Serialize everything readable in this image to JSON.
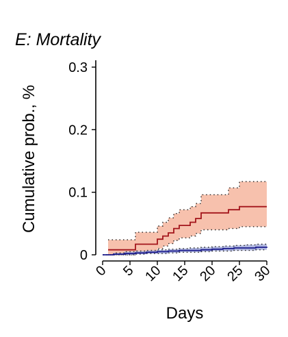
{
  "chart_data": {
    "type": "line",
    "title": "E: Mortality",
    "xlabel": "Days",
    "ylabel": "Cumulative prob., %",
    "xlim": [
      0,
      30
    ],
    "ylim": [
      0,
      0.3
    ],
    "x_ticks": [
      "0",
      "5",
      "10",
      "15",
      "20",
      "25",
      "30"
    ],
    "y_ticks": [
      "0",
      "0.1",
      "0.2",
      "0.3"
    ],
    "grid": false,
    "legend": "none",
    "series": [
      {
        "color": "#a3141b",
        "ci_fill": "#f7c1ad",
        "x": [
          1,
          6,
          10,
          11,
          12,
          13,
          14,
          16,
          17,
          18,
          23,
          25,
          30
        ],
        "y": [
          0.008,
          0.017,
          0.025,
          0.03,
          0.035,
          0.042,
          0.047,
          0.052,
          0.058,
          0.067,
          0.072,
          0.077,
          0.077
        ],
        "lower": [
          0.0,
          0.004,
          0.01,
          0.014,
          0.018,
          0.023,
          0.027,
          0.03,
          0.034,
          0.04,
          0.042,
          0.045,
          0.045
        ],
        "upper": [
          0.024,
          0.036,
          0.046,
          0.052,
          0.059,
          0.066,
          0.072,
          0.077,
          0.082,
          0.096,
          0.107,
          0.117,
          0.117
        ]
      },
      {
        "color": "#1a1a8c",
        "ci_fill": "#a9b0dd",
        "x": [
          0,
          2,
          4,
          6,
          8,
          10,
          12,
          14,
          16,
          18,
          20,
          22,
          24,
          26,
          28,
          30
        ],
        "y": [
          0.0,
          0.001,
          0.002,
          0.003,
          0.004,
          0.005,
          0.006,
          0.007,
          0.007,
          0.008,
          0.009,
          0.01,
          0.011,
          0.011,
          0.012,
          0.013
        ],
        "lower": [
          0.0,
          0.0,
          0.0,
          0.001,
          0.002,
          0.002,
          0.003,
          0.004,
          0.004,
          0.005,
          0.006,
          0.006,
          0.007,
          0.007,
          0.008,
          0.008
        ],
        "upper": [
          0.0,
          0.003,
          0.005,
          0.006,
          0.007,
          0.008,
          0.009,
          0.01,
          0.011,
          0.012,
          0.013,
          0.014,
          0.015,
          0.016,
          0.017,
          0.018
        ]
      }
    ]
  }
}
